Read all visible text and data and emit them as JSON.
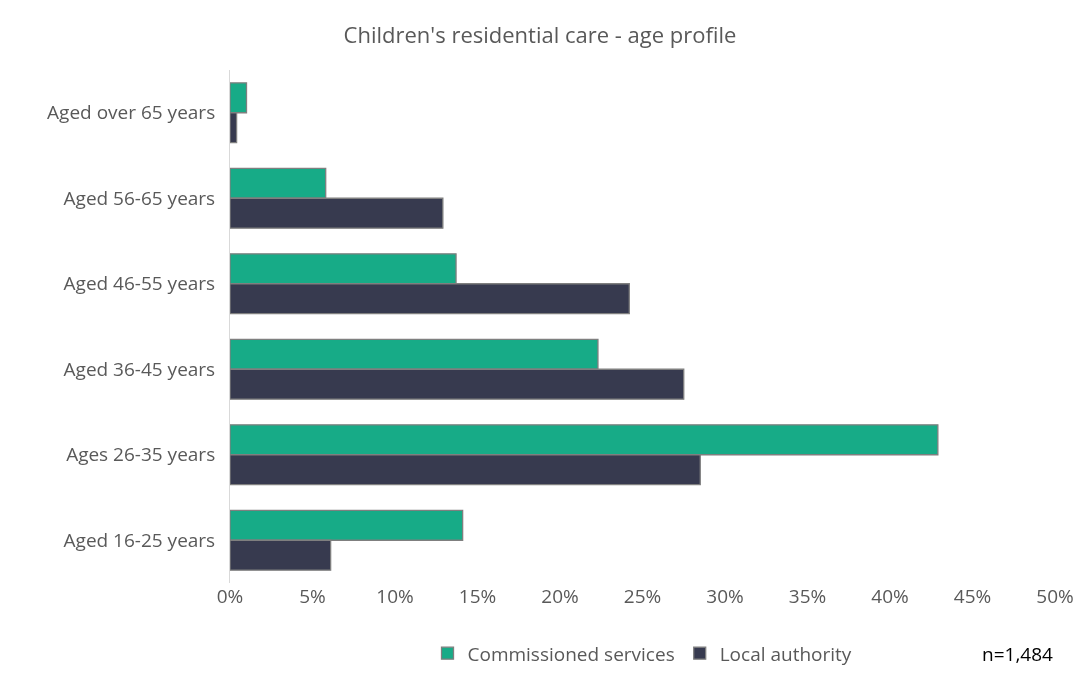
{
  "chart_data": {
    "type": "bar",
    "orientation": "horizontal",
    "title": "Children's residential care - age profile",
    "categories": [
      "Aged over 65 years",
      "Aged 56-65 years",
      "Aged 46-55 years",
      "Aged 36-45 years",
      "Ages 26-35 years",
      "Aged 16-25 years"
    ],
    "series": [
      {
        "name": "Commissioned services",
        "color": "#17ab87",
        "values": [
          1.0,
          5.8,
          13.7,
          22.3,
          42.9,
          14.1
        ]
      },
      {
        "name": "Local authority",
        "color": "#373a4f",
        "values": [
          0.4,
          12.9,
          24.2,
          27.5,
          28.5,
          6.1
        ]
      }
    ],
    "xlim": [
      0,
      50
    ],
    "xticks": [
      {
        "value": 0,
        "label": "0%"
      },
      {
        "value": 5,
        "label": "5%"
      },
      {
        "value": 10,
        "label": "10%"
      },
      {
        "value": 15,
        "label": "15%"
      },
      {
        "value": 20,
        "label": "20%"
      },
      {
        "value": 25,
        "label": "25%"
      },
      {
        "value": 30,
        "label": "30%"
      },
      {
        "value": 35,
        "label": "35%"
      },
      {
        "value": 40,
        "label": "40%"
      },
      {
        "value": 45,
        "label": "45%"
      },
      {
        "value": 50,
        "label": "50%"
      }
    ],
    "grid": false,
    "legend": "bottom",
    "annotations": [
      "n=1,484"
    ]
  }
}
